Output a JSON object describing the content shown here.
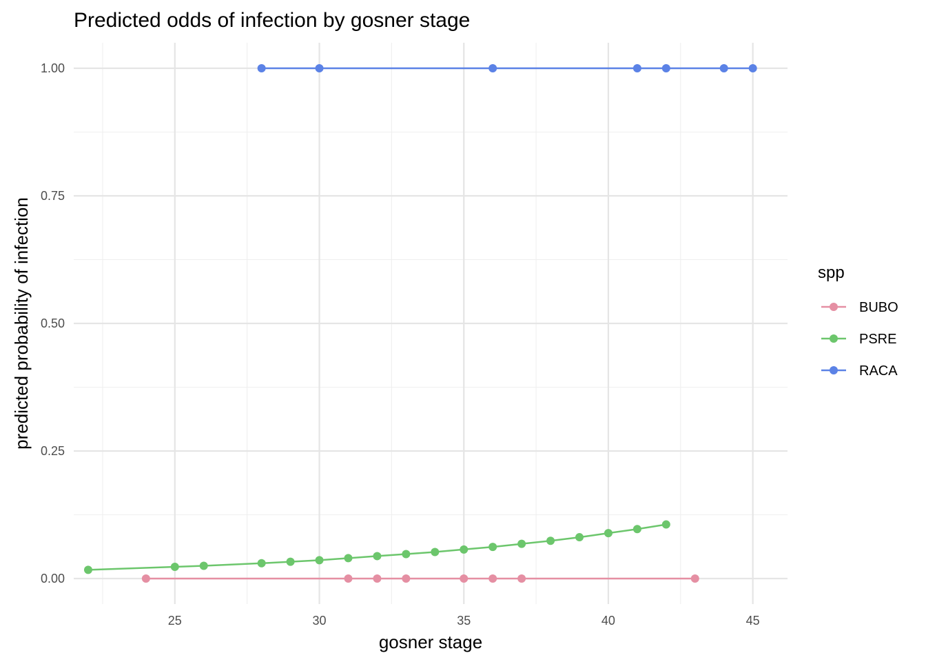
{
  "chart_data": {
    "type": "line",
    "title": "Predicted odds of infection by gosner stage",
    "xlabel": "gosner stage",
    "ylabel": "predicted probability of infection",
    "xlim": [
      21.5,
      46.2
    ],
    "ylim": [
      -0.05,
      1.05
    ],
    "x_ticks": [
      25,
      30,
      35,
      40,
      45
    ],
    "x_tick_labels": [
      "25",
      "30",
      "35",
      "40",
      "45"
    ],
    "y_ticks": [
      0,
      0.25,
      0.5,
      0.75,
      1
    ],
    "y_tick_labels": [
      "0.00",
      "0.25",
      "0.50",
      "0.75",
      "1.00"
    ],
    "grid": true,
    "legend": {
      "title": "spp",
      "position": "right"
    },
    "series": [
      {
        "name": "BUBO",
        "color": "#E58FA3",
        "x": [
          24,
          31,
          32,
          33,
          35,
          36,
          37,
          43
        ],
        "y": [
          0,
          0,
          0,
          0,
          0,
          0,
          0,
          0
        ]
      },
      {
        "name": "PSRE",
        "color": "#6CC66C",
        "x": [
          22,
          25,
          26,
          28,
          29,
          30,
          31,
          32,
          33,
          34,
          35,
          36,
          37,
          38,
          39,
          40,
          41,
          42
        ],
        "y": [
          0.017,
          0.023,
          0.025,
          0.03,
          0.033,
          0.036,
          0.04,
          0.044,
          0.048,
          0.052,
          0.057,
          0.062,
          0.068,
          0.074,
          0.081,
          0.089,
          0.097,
          0.106
        ]
      },
      {
        "name": "RACA",
        "color": "#5B82E6",
        "x": [
          28,
          30,
          36,
          41,
          42,
          44,
          45
        ],
        "y": [
          1,
          1,
          1,
          1,
          1,
          1,
          1
        ]
      }
    ]
  }
}
